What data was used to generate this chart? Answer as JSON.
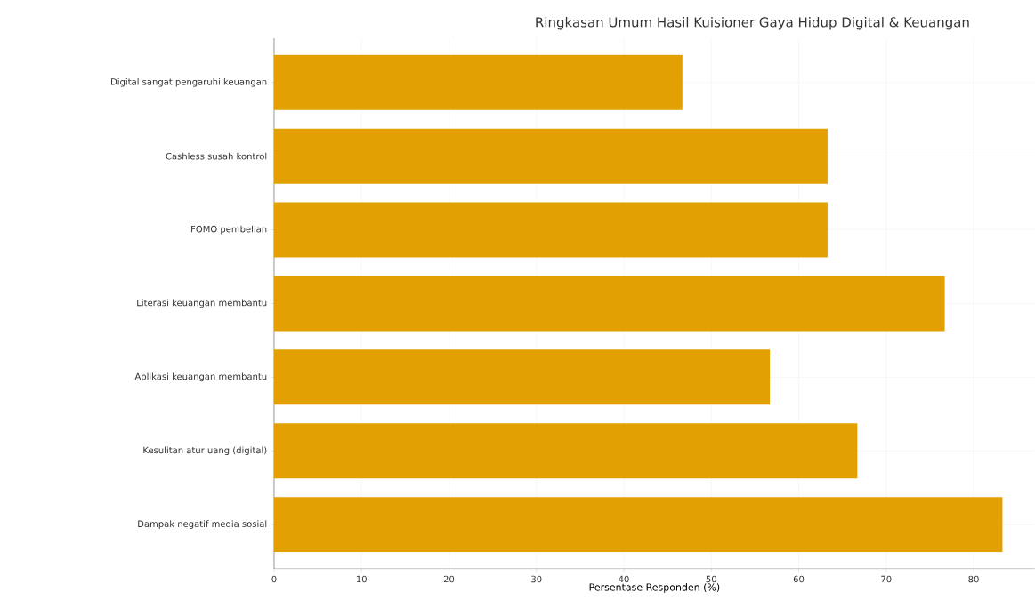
{
  "chart_data": {
    "type": "bar",
    "orientation": "horizontal",
    "title": "Ringkasan Umum Hasil Kuisioner Gaya Hidup Digital & Keuangan",
    "xlabel": "Persentase Responden (%)",
    "categories": [
      "Digital sangat pengaruhi keuangan",
      "Cashless susah kontrol",
      "FOMO pembelian",
      "Literasi keuangan membantu",
      "Aplikasi keuangan membantu",
      "Kesulitan atur uang (digital)",
      "Dampak negatif media sosial"
    ],
    "values": [
      46.7,
      63.3,
      63.3,
      76.7,
      56.7,
      66.7,
      83.3
    ],
    "color": "#e3a003",
    "xlim": [
      0,
      87
    ],
    "xticks": [
      0,
      10,
      20,
      30,
      40,
      50,
      60,
      70,
      80
    ],
    "grid": true
  }
}
